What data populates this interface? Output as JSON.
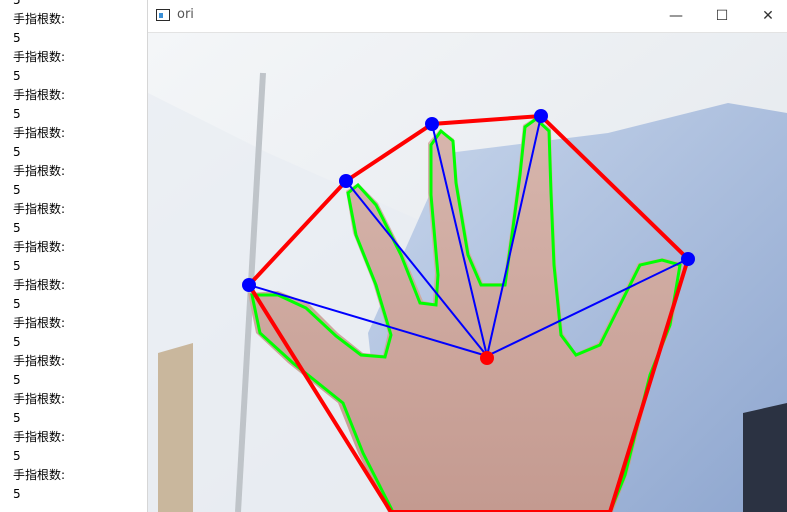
{
  "console": {
    "lines": [
      "5",
      "手指根数:",
      "5",
      "手指根数:",
      "5",
      "手指根数:",
      "5",
      "手指根数:",
      "5",
      "手指根数:",
      "5",
      "手指根数:",
      "5",
      "手指根数:",
      "5",
      "手指根数:",
      "5",
      "手指根数:",
      "5",
      "手指根数:",
      "5",
      "手指根数:",
      "5",
      "手指根数:",
      "5",
      "手指根数:",
      "5"
    ]
  },
  "window": {
    "title": "ori",
    "min_symbol": "—",
    "max_symbol": "☐",
    "close_symbol": "✕"
  },
  "colors": {
    "hull": "#ff0000",
    "contour": "#00ff00",
    "fingertip": "#0000ff",
    "palm_center": "#ff0000",
    "finger_line": "#0000ff"
  }
}
